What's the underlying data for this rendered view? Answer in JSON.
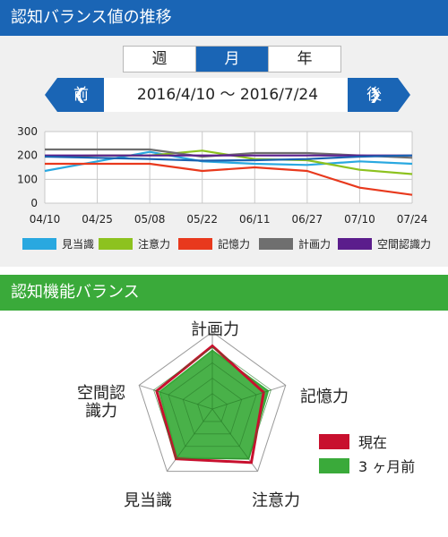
{
  "trend_panel": {
    "title": "認知バランス値の推移",
    "tabs": [
      {
        "label": "週",
        "active": false
      },
      {
        "label": "月",
        "active": true
      },
      {
        "label": "年",
        "active": false
      }
    ],
    "prev_label": "前",
    "next_label": "後",
    "prev_glyph": "❮",
    "next_glyph": "❯",
    "date_range": "2016/4/10 〜 2016/7/24"
  },
  "balance_panel": {
    "title": "認知機能バランス",
    "axes": [
      "計画力",
      "記憶力",
      "注意力",
      "見当識",
      "空間認識力"
    ],
    "legend": [
      {
        "name": "現在",
        "color": "#c8102e"
      },
      {
        "name": "3 ヶ月前",
        "color": "#3aaa3a"
      }
    ]
  },
  "chart_data": [
    {
      "type": "line",
      "categories": [
        "04/10",
        "04/25",
        "05/08",
        "05/22",
        "06/11",
        "06/27",
        "07/10",
        "07/24"
      ],
      "ylim": [
        0,
        300
      ],
      "yticks": [
        0,
        100,
        200,
        300
      ],
      "grid": true,
      "legend_placement": "bottom",
      "series": [
        {
          "name": "見当識",
          "color": "#29a8e0",
          "values": [
            135,
            175,
            215,
            175,
            165,
            160,
            175,
            165
          ]
        },
        {
          "name": "注意力",
          "color": "#8dc21f",
          "values": [
            195,
            200,
            200,
            220,
            185,
            180,
            140,
            122
          ]
        },
        {
          "name": "記憶力",
          "color": "#e8391d",
          "values": [
            165,
            165,
            165,
            135,
            150,
            135,
            65,
            35
          ]
        },
        {
          "name": "計画力",
          "color": "#6f6f6f",
          "values": [
            225,
            225,
            225,
            195,
            210,
            210,
            200,
            190
          ]
        },
        {
          "name": "空間認識力",
          "color": "#5b1d8c",
          "values": [
            200,
            200,
            200,
            200,
            200,
            200,
            200,
            200
          ]
        }
      ],
      "extra_series": [
        {
          "color": "#1a62b0",
          "values": [
            195,
            190,
            185,
            178,
            180,
            185,
            195,
            200
          ]
        }
      ]
    },
    {
      "type": "radar",
      "categories": [
        "計画力",
        "記憶力",
        "注意力",
        "見当識",
        "空間認識力"
      ],
      "range": [
        0,
        5
      ],
      "series": [
        {
          "name": "現在",
          "color": "#c8102e",
          "values": [
            4.1,
            3.5,
            4.3,
            4.0,
            3.8
          ]
        },
        {
          "name": "3 ヶ月前",
          "color": "#3aaa3a",
          "values": [
            3.8,
            3.8,
            4.0,
            3.9,
            3.6
          ]
        }
      ]
    }
  ]
}
